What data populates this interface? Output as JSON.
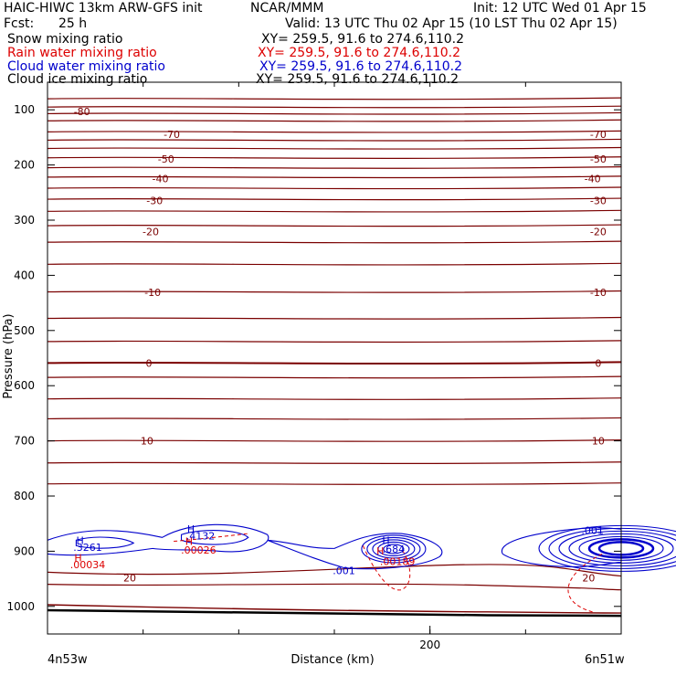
{
  "header": {
    "title": "HAIC-HIWC 13km ARW-GFS init",
    "source": "NCAR/MMM",
    "init": "Init: 12 UTC Wed 01 Apr 15",
    "fcst_label": "Fcst:",
    "fcst_value": "25 h",
    "valid": "Valid: 13 UTC Thu 02 Apr 15 (10 LST Thu 02 Apr 15)"
  },
  "legend": [
    {
      "name": "Snow mixing ratio",
      "xy": "XY= 259.5, 91.6 to 274.6,110.2",
      "color": "#000000"
    },
    {
      "name": "Rain water mixing ratio",
      "xy": "XY= 259.5, 91.6 to 274.6,110.2",
      "color": "#dd0000"
    },
    {
      "name": "Cloud water mixing ratio",
      "xy": "XY= 259.5, 91.6 to 274.6,110.2",
      "color": "#0000cc"
    },
    {
      "name": "Cloud ice mixing ratio",
      "xy": "XY= 259.5, 91.6 to 274.6,110.2",
      "color": "#000000"
    }
  ],
  "chart_data": {
    "type": "contour",
    "ylabel": "Pressure (hPa)",
    "xlabel": "Distance (km)",
    "x_left_label": "4n53w",
    "x_right_label": "6n51w",
    "xlim": [
      0,
      300
    ],
    "ylim": [
      1050,
      50
    ],
    "x_ticks": [
      200
    ],
    "y_ticks": [
      100,
      200,
      300,
      400,
      500,
      600,
      700,
      800,
      900,
      1000
    ],
    "isotherm_color": "#7a0000",
    "isotherms_labeled": [
      {
        "value": "-80",
        "p": 103,
        "x": [
          18
        ]
      },
      {
        "value": "-70",
        "p": 144,
        "x": [
          65,
          288
        ]
      },
      {
        "value": "-50",
        "p": 189,
        "x": [
          62,
          288
        ]
      },
      {
        "value": "-40",
        "p": 225,
        "x": [
          59,
          285
        ]
      },
      {
        "value": "-30",
        "p": 264,
        "x": [
          56,
          288
        ]
      },
      {
        "value": "-20",
        "p": 321,
        "x": [
          54,
          288
        ]
      },
      {
        "value": "-10",
        "p": 431,
        "x": [
          55,
          288
        ]
      },
      {
        "value": "0",
        "p": 559,
        "x": [
          53,
          288
        ]
      },
      {
        "value": "10",
        "p": 700,
        "x": [
          52,
          288
        ]
      },
      {
        "value": "20",
        "p": 948,
        "x": [
          43,
          283
        ]
      }
    ],
    "isotherm_levels": [
      80,
      95,
      107,
      120,
      140,
      155,
      170,
      187,
      205,
      222,
      242,
      262,
      284,
      310,
      340,
      380,
      430,
      478,
      520,
      559,
      585,
      624,
      660,
      700,
      740,
      778
    ],
    "cloud_water_labels": [
      {
        "text": "H",
        "x": 17,
        "p": 880
      },
      {
        "text": ".3261",
        "x": 21,
        "p": 893
      },
      {
        "text": "H",
        "x": 75,
        "p": 860
      },
      {
        "text": ".4132",
        "x": 80,
        "p": 872
      },
      {
        "text": "H",
        "x": 177,
        "p": 880
      },
      {
        "text": ".684",
        "x": 181,
        "p": 896
      },
      {
        "text": ".001",
        "x": 155,
        "p": 935
      },
      {
        "text": ".001",
        "x": 285,
        "p": 862
      }
    ],
    "rain_water_labels": [
      {
        "text": "H",
        "x": 16,
        "p": 912
      },
      {
        "text": ".00034",
        "x": 21,
        "p": 924
      },
      {
        "text": "H",
        "x": 74,
        "p": 882
      },
      {
        "text": ".00026",
        "x": 79,
        "p": 898
      },
      {
        "text": "H",
        "x": 174,
        "p": 899
      },
      {
        "text": ".00189",
        "x": 183,
        "p": 918
      }
    ]
  }
}
